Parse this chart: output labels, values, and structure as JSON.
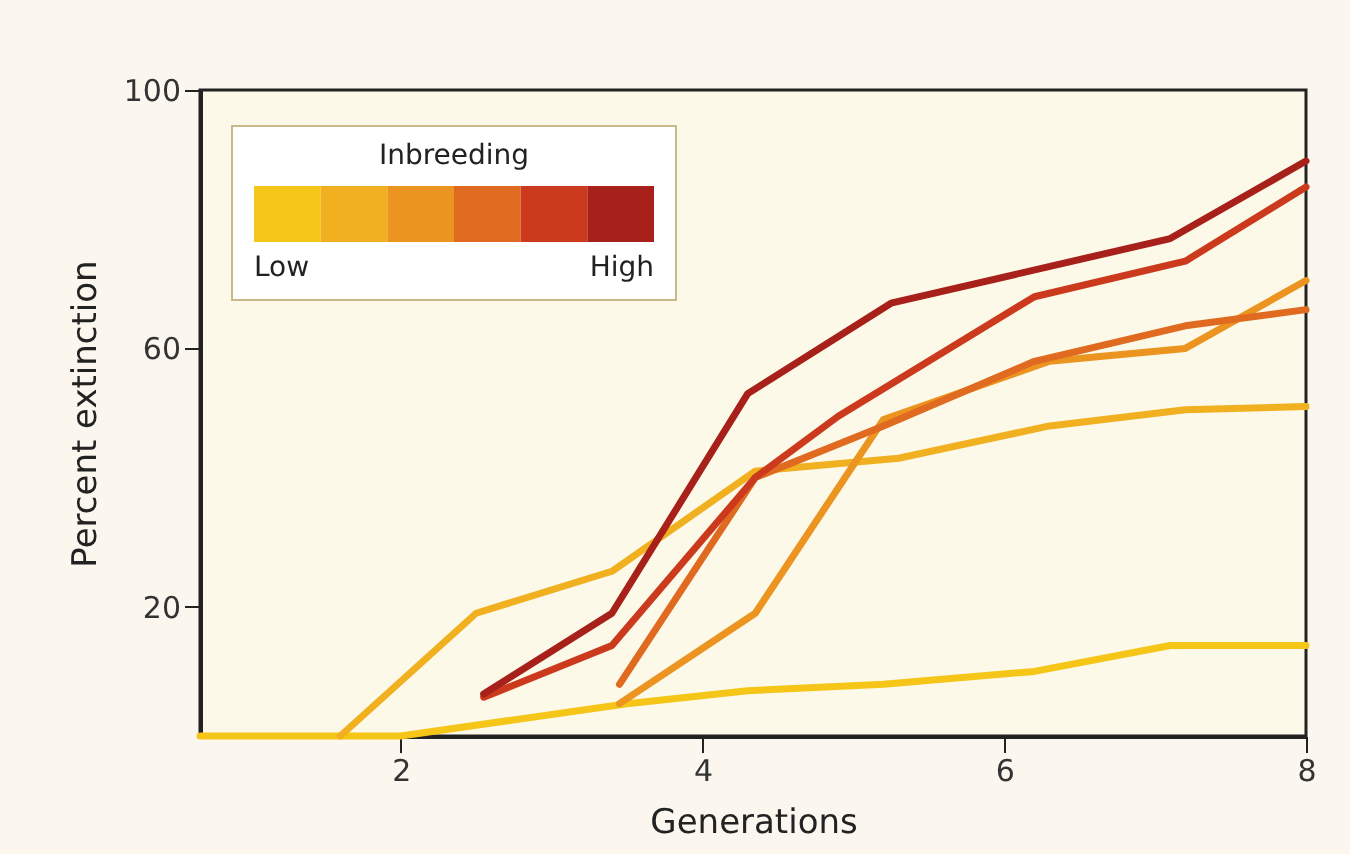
{
  "chart_data": {
    "type": "line",
    "xlabel": "Generations",
    "ylabel": "Percent extinction",
    "legend_title": "Inbreeding",
    "legend": "top left",
    "grid": false,
    "line_style": "solid",
    "marker": "none",
    "xlim": [
      0.67,
      8
    ],
    "ylim": [
      0,
      100
    ],
    "xticks": [
      2,
      4,
      6,
      8
    ],
    "yticks": [
      20,
      60,
      100
    ],
    "series": [
      {
        "name": "Low",
        "color": "#f5c518",
        "x": [
          0.67,
          2,
          3.5,
          4.3,
          5.2,
          6.2,
          7.1,
          8
        ],
        "values": [
          0,
          0,
          5,
          7,
          8,
          10,
          14,
          14
        ]
      },
      {
        "color": "#f0b020",
        "x": [
          1.6,
          2.5,
          3.4,
          4.35,
          5.3,
          6.3,
          7.2,
          8
        ],
        "values": [
          0,
          19,
          25.5,
          41,
          43,
          48,
          50.5,
          51
        ]
      },
      {
        "color": "#eb9420",
        "x": [
          3.45,
          4.35,
          5.2,
          6.3,
          7.2,
          8
        ],
        "values": [
          5,
          19,
          49,
          58,
          60,
          70.5
        ]
      },
      {
        "color": "#e06a20",
        "x": [
          3.45,
          4.35,
          5.2,
          6.2,
          7.2,
          8
        ],
        "values": [
          8,
          40,
          48,
          58,
          63.5,
          66
        ]
      },
      {
        "color": "#cc3a1e",
        "x": [
          2.55,
          3.4,
          4.35,
          4.9,
          6.2,
          7.2,
          8
        ],
        "values": [
          6,
          14,
          40,
          49.5,
          68,
          73.5,
          85
        ]
      },
      {
        "name": "High",
        "color": "#a8201a",
        "x": [
          2.55,
          3.4,
          4.3,
          5.25,
          7.1,
          8
        ],
        "values": [
          6.5,
          19,
          53,
          67,
          77,
          89
        ]
      }
    ]
  }
}
